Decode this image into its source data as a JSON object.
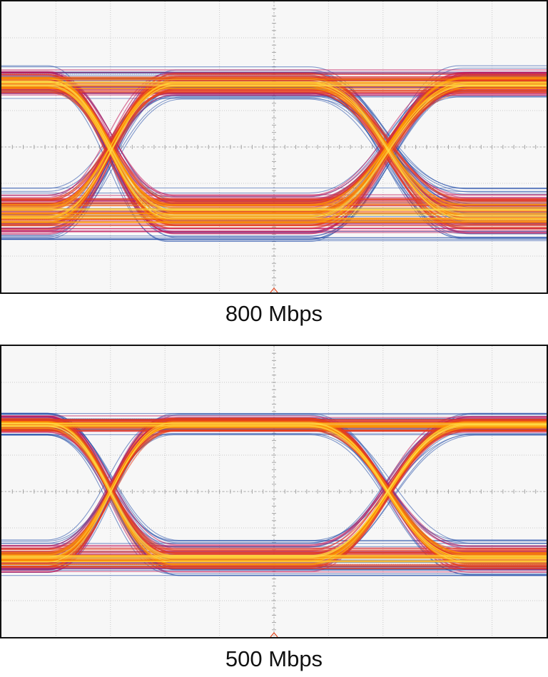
{
  "chart_data": [
    {
      "type": "eye-diagram",
      "title": "800 Mbps",
      "grid": true,
      "grid_divisions": {
        "x": 10,
        "y": 8
      },
      "unit_intervals_shown": 2.6,
      "eye_crossings_ui": [
        0.6,
        2.0
      ],
      "levels": {
        "high": 0.72,
        "low": 0.27,
        "mid": 0.5
      },
      "eye_opening": {
        "height_fraction": 0.22,
        "width_ui": 1.0
      },
      "trace_spread": 0.12,
      "persistence_colors": [
        "#1f4aa8",
        "#c2185b",
        "#e8401c",
        "#ff9800",
        "#ffe14d"
      ]
    },
    {
      "type": "eye-diagram",
      "title": "500 Mbps",
      "grid": true,
      "grid_divisions": {
        "x": 10,
        "y": 8
      },
      "unit_intervals_shown": 2.6,
      "eye_crossings_ui": [
        0.6,
        2.0
      ],
      "levels": {
        "high": 0.73,
        "low": 0.27,
        "mid": 0.5
      },
      "eye_opening": {
        "height_fraction": 0.3,
        "width_ui": 1.0
      },
      "trace_spread": 0.08,
      "persistence_colors": [
        "#1f4aa8",
        "#c2185b",
        "#e8401c",
        "#ff9800",
        "#ffe14d"
      ]
    }
  ]
}
